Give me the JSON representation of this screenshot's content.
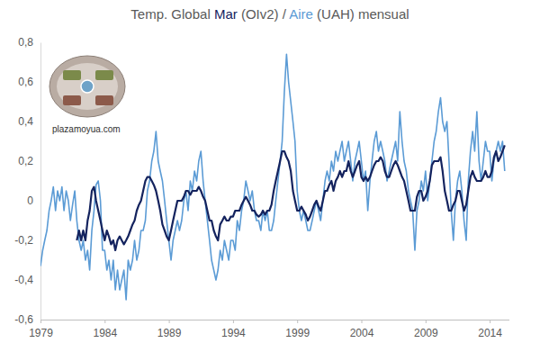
{
  "chart_data": {
    "type": "line",
    "title": "Temp. Global Mar (OIv2) / Aire (UAH) mensual",
    "annotation": "plazamoyua.com",
    "xlim": [
      1979,
      2015.5
    ],
    "xticks": [
      1979,
      1984,
      1989,
      1994,
      1999,
      2004,
      2009,
      2014
    ],
    "ylim": [
      -0.6,
      0.8
    ],
    "yticks": [
      {
        "value": -0.6,
        "label": "-0,6"
      },
      {
        "value": -0.4,
        "label": "-0,4"
      },
      {
        "value": -0.2,
        "label": "-0,2"
      },
      0,
      {
        "value": 0.2,
        "label": "0,2"
      },
      {
        "value": 0.4,
        "label": "0,4"
      },
      {
        "value": 0.6,
        "label": "0,6"
      },
      {
        "value": 0.8,
        "label": "0,8"
      }
    ],
    "x": [
      1979,
      1979.17,
      1979.33,
      1979.5,
      1979.67,
      1979.83,
      1980,
      1980.17,
      1980.33,
      1980.5,
      1980.67,
      1980.83,
      1981,
      1981.17,
      1981.33,
      1981.5,
      1981.67,
      1981.83,
      1982,
      1982.17,
      1982.33,
      1982.5,
      1982.67,
      1982.83,
      1983,
      1983.17,
      1983.33,
      1983.5,
      1983.67,
      1983.83,
      1984,
      1984.17,
      1984.33,
      1984.5,
      1984.67,
      1984.83,
      1985,
      1985.17,
      1985.33,
      1985.5,
      1985.67,
      1985.83,
      1986,
      1986.17,
      1986.33,
      1986.5,
      1986.67,
      1986.83,
      1987,
      1987.17,
      1987.33,
      1987.5,
      1987.67,
      1987.83,
      1988,
      1988.17,
      1988.33,
      1988.5,
      1988.67,
      1988.83,
      1989,
      1989.17,
      1989.33,
      1989.5,
      1989.67,
      1989.83,
      1990,
      1990.17,
      1990.33,
      1990.5,
      1990.67,
      1990.83,
      1991,
      1991.17,
      1991.33,
      1991.5,
      1991.67,
      1991.83,
      1992,
      1992.17,
      1992.33,
      1992.5,
      1992.67,
      1992.83,
      1993,
      1993.17,
      1993.33,
      1993.5,
      1993.67,
      1993.83,
      1994,
      1994.17,
      1994.33,
      1994.5,
      1994.67,
      1994.83,
      1995,
      1995.17,
      1995.33,
      1995.5,
      1995.67,
      1995.83,
      1996,
      1996.17,
      1996.33,
      1996.5,
      1996.67,
      1996.83,
      1997,
      1997.17,
      1997.33,
      1997.5,
      1997.67,
      1997.83,
      1998,
      1998.17,
      1998.33,
      1998.5,
      1998.67,
      1998.83,
      1999,
      1999.17,
      1999.33,
      1999.5,
      1999.67,
      1999.83,
      2000,
      2000.17,
      2000.33,
      2000.5,
      2000.67,
      2000.83,
      2001,
      2001.17,
      2001.33,
      2001.5,
      2001.67,
      2001.83,
      2002,
      2002.17,
      2002.33,
      2002.5,
      2002.67,
      2002.83,
      2003,
      2003.17,
      2003.33,
      2003.5,
      2003.67,
      2003.83,
      2004,
      2004.17,
      2004.33,
      2004.5,
      2004.67,
      2004.83,
      2005,
      2005.17,
      2005.33,
      2005.5,
      2005.67,
      2005.83,
      2006,
      2006.17,
      2006.33,
      2006.5,
      2006.67,
      2006.83,
      2007,
      2007.17,
      2007.33,
      2007.5,
      2007.67,
      2007.83,
      2008,
      2008.17,
      2008.33,
      2008.5,
      2008.67,
      2008.83,
      2009,
      2009.17,
      2009.33,
      2009.5,
      2009.67,
      2009.83,
      2010,
      2010.17,
      2010.33,
      2010.5,
      2010.67,
      2010.83,
      2011,
      2011.17,
      2011.33,
      2011.5,
      2011.67,
      2011.83,
      2012,
      2012.17,
      2012.33,
      2012.5,
      2012.67,
      2012.83,
      2013,
      2013.17,
      2013.33,
      2013.5,
      2013.67,
      2013.83,
      2014,
      2014.17,
      2014.33,
      2014.5,
      2014.67,
      2014.83,
      2015,
      2015.17
    ],
    "series": [
      {
        "name": "Aire",
        "color": "#5b9bd5",
        "values": [
          -0.33,
          -0.25,
          -0.2,
          -0.15,
          -0.05,
          0.0,
          0.07,
          -0.05,
          0.05,
          0.0,
          0.07,
          -0.05,
          0.05,
          0.0,
          -0.1,
          -0.02,
          0.05,
          -0.1,
          -0.2,
          -0.25,
          -0.2,
          -0.3,
          -0.25,
          -0.35,
          -0.15,
          -0.05,
          0.08,
          0.1,
          0.0,
          -0.25,
          -0.25,
          -0.35,
          -0.3,
          -0.4,
          -0.3,
          -0.45,
          -0.35,
          -0.45,
          -0.4,
          -0.35,
          -0.5,
          -0.3,
          -0.35,
          -0.3,
          -0.2,
          -0.3,
          -0.25,
          -0.15,
          -0.15,
          -0.1,
          0.05,
          0.1,
          0.2,
          0.25,
          0.35,
          0.2,
          0.15,
          0.1,
          0.0,
          -0.1,
          -0.2,
          -0.3,
          -0.2,
          -0.15,
          -0.1,
          -0.15,
          -0.1,
          0.0,
          0.05,
          -0.05,
          0.1,
          0.05,
          0.15,
          0.1,
          0.2,
          0.25,
          0.1,
          0.0,
          -0.1,
          -0.2,
          -0.3,
          -0.35,
          -0.4,
          -0.35,
          -0.25,
          -0.3,
          -0.2,
          -0.25,
          -0.3,
          -0.2,
          -0.2,
          -0.25,
          -0.1,
          -0.15,
          -0.05,
          0.0,
          0.1,
          0.05,
          0.0,
          0.05,
          -0.05,
          -0.1,
          -0.1,
          -0.15,
          -0.05,
          -0.1,
          -0.05,
          -0.15,
          -0.15,
          -0.1,
          0.0,
          0.1,
          0.2,
          0.3,
          0.55,
          0.74,
          0.6,
          0.5,
          0.4,
          0.3,
          0.05,
          -0.05,
          -0.1,
          -0.05,
          -0.1,
          -0.15,
          -0.15,
          -0.1,
          -0.05,
          0.0,
          -0.05,
          -0.1,
          0.0,
          0.1,
          0.15,
          0.1,
          0.2,
          0.15,
          0.25,
          0.2,
          0.25,
          0.3,
          0.2,
          0.25,
          0.3,
          0.2,
          0.1,
          0.2,
          0.25,
          0.3,
          0.2,
          0.1,
          0.15,
          -0.05,
          0.1,
          0.2,
          0.3,
          0.35,
          0.25,
          0.3,
          0.25,
          0.2,
          0.1,
          0.15,
          0.2,
          0.25,
          0.3,
          0.2,
          0.45,
          0.3,
          0.2,
          0.15,
          0.05,
          0.0,
          -0.05,
          -0.25,
          -0.05,
          0.0,
          0.1,
          0.05,
          0.15,
          0.0,
          0.1,
          0.2,
          0.3,
          0.35,
          0.45,
          0.52,
          0.4,
          0.35,
          0.4,
          0.2,
          -0.05,
          -0.2,
          0.0,
          0.1,
          0.15,
          0.05,
          -0.1,
          -0.2,
          0.1,
          0.25,
          0.35,
          0.25,
          0.45,
          0.2,
          0.1,
          0.2,
          0.3,
          0.25,
          0.25,
          0.1,
          0.2,
          0.25,
          0.3,
          0.25,
          0.3,
          0.15
        ]
      },
      {
        "name": "Mar",
        "color": "#14235e",
        "values": [
          null,
          null,
          null,
          null,
          null,
          null,
          null,
          null,
          null,
          null,
          null,
          null,
          null,
          null,
          null,
          null,
          null,
          -0.2,
          -0.15,
          -0.2,
          -0.15,
          -0.2,
          -0.1,
          -0.05,
          0.05,
          0.07,
          0.0,
          -0.05,
          -0.1,
          -0.15,
          -0.2,
          -0.15,
          -0.18,
          -0.22,
          -0.2,
          -0.25,
          -0.2,
          -0.18,
          -0.2,
          -0.22,
          -0.2,
          -0.18,
          -0.15,
          -0.12,
          -0.1,
          -0.05,
          -0.02,
          0.0,
          0.05,
          0.1,
          0.12,
          0.12,
          0.1,
          0.08,
          0.05,
          0.0,
          -0.05,
          -0.12,
          -0.15,
          -0.18,
          -0.2,
          -0.15,
          -0.1,
          -0.05,
          0.0,
          0.0,
          0.0,
          0.02,
          0.05,
          0.05,
          0.03,
          0.05,
          0.05,
          0.05,
          0.07,
          0.05,
          0.02,
          0.0,
          -0.05,
          -0.1,
          -0.1,
          -0.15,
          -0.18,
          -0.2,
          -0.12,
          -0.1,
          -0.08,
          -0.1,
          -0.1,
          -0.08,
          -0.08,
          -0.05,
          -0.05,
          -0.05,
          -0.02,
          0.0,
          0.02,
          0.0,
          -0.02,
          -0.05,
          -0.05,
          -0.07,
          -0.08,
          -0.07,
          -0.05,
          -0.07,
          -0.05,
          -0.05,
          -0.02,
          0.05,
          0.1,
          0.15,
          0.2,
          0.25,
          0.25,
          0.22,
          0.2,
          0.15,
          0.05,
          0.0,
          -0.05,
          -0.05,
          -0.03,
          -0.05,
          -0.07,
          -0.1,
          -0.08,
          -0.05,
          -0.02,
          0.0,
          -0.03,
          -0.05,
          0.0,
          0.05,
          0.05,
          0.08,
          0.1,
          0.05,
          0.1,
          0.12,
          0.15,
          0.12,
          0.15,
          0.15,
          0.2,
          0.15,
          0.12,
          0.15,
          0.18,
          0.2,
          0.12,
          0.1,
          0.12,
          0.1,
          0.12,
          0.15,
          0.18,
          0.2,
          0.2,
          0.22,
          0.2,
          0.15,
          0.12,
          0.12,
          0.15,
          0.18,
          0.2,
          0.18,
          0.15,
          0.12,
          0.1,
          0.05,
          0.0,
          -0.05,
          -0.05,
          -0.05,
          0.02,
          0.05,
          0.05,
          0.0,
          0.02,
          0.05,
          0.1,
          0.18,
          0.2,
          0.2,
          0.2,
          0.22,
          0.15,
          0.05,
          0.0,
          -0.05,
          -0.05,
          -0.02,
          0.0,
          0.05,
          0.05,
          0.0,
          -0.05,
          -0.02,
          0.05,
          0.12,
          0.15,
          0.12,
          0.1,
          0.1,
          0.1,
          0.12,
          0.15,
          0.12,
          0.12,
          0.15,
          0.22,
          0.25,
          0.2,
          0.22,
          0.25,
          0.28
        ]
      }
    ]
  }
}
